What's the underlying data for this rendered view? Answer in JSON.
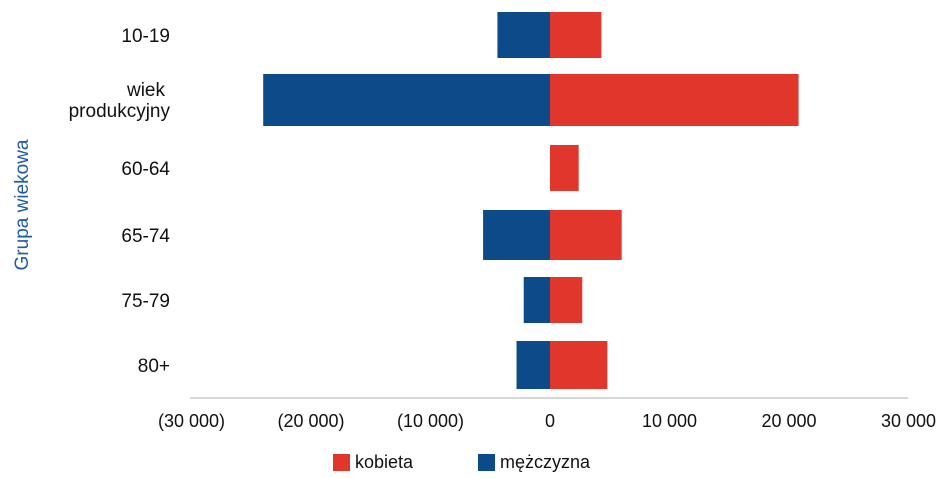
{
  "chart_data": {
    "type": "bar",
    "orientation": "horizontal",
    "stacked": "diverging",
    "ylabel": "Grupa wiekowa",
    "xlabel": "",
    "categories": [
      [
        "10-19"
      ],
      [
        "wiek",
        "produkcyjny"
      ],
      [
        "60-64"
      ],
      [
        "65-74"
      ],
      [
        "75-79"
      ],
      [
        "80+"
      ]
    ],
    "xlim": [
      -30000,
      30000
    ],
    "xticks": [
      -30000,
      -20000,
      -10000,
      0,
      10000,
      20000,
      30000
    ],
    "xtick_labels": [
      "(30 000)",
      "(20 000)",
      "(10 000)",
      "0",
      "10 000",
      "20 000",
      "30 000"
    ],
    "series": [
      {
        "name": "kobieta",
        "color": "#e1362b",
        "values": [
          4300,
          20800,
          2400,
          6000,
          2700,
          4800
        ]
      },
      {
        "name": "mężczyzna",
        "color": "#0c4a8a",
        "values": [
          -4400,
          -24000,
          0,
          -5600,
          -2200,
          -2800
        ]
      }
    ],
    "legend": "bottom-center",
    "grid": false
  }
}
